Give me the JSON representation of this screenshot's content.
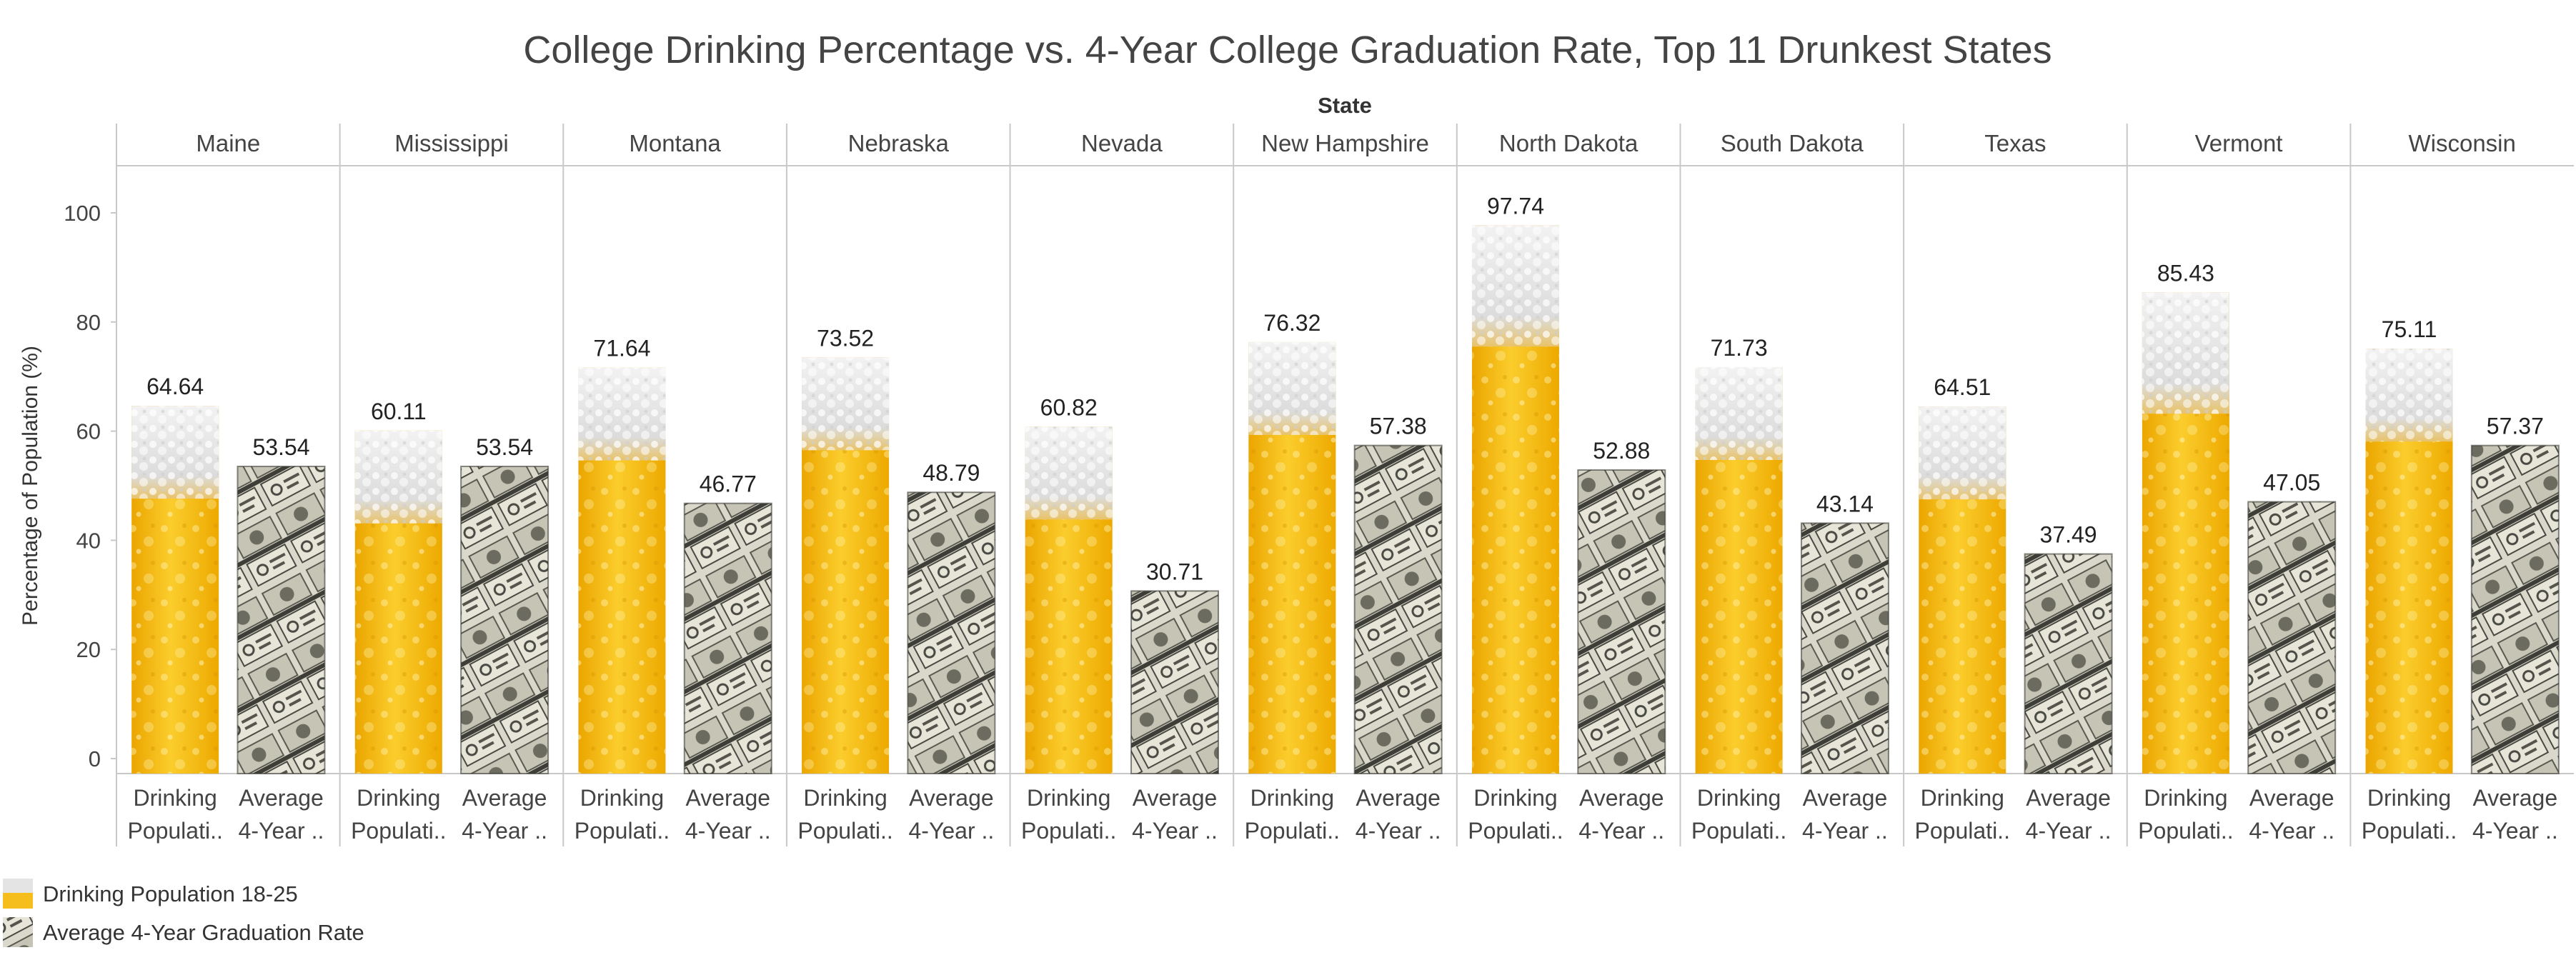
{
  "chart_data": {
    "type": "bar",
    "title": "College Drinking Percentage vs. 4-Year College Graduation Rate, Top 11 Drunkest States",
    "column_header": "State",
    "ylabel": "Percentage of Population (%)",
    "ylim": [
      0,
      110
    ],
    "yticks": [
      0,
      20,
      40,
      60,
      80,
      100
    ],
    "categories": [
      "Maine",
      "Mississippi",
      "Montana",
      "Nebraska",
      "Nevada",
      "New Hampshire",
      "North Dakota",
      "South Dakota",
      "Texas",
      "Vermont",
      "Wisconsin"
    ],
    "bar_axis_labels": [
      [
        "Drinking",
        "Populati.."
      ],
      [
        "Average",
        "4-Year .."
      ]
    ],
    "series": [
      {
        "name": "Drinking Population 18-25",
        "values": [
          64.64,
          60.11,
          71.64,
          73.52,
          60.82,
          76.32,
          97.74,
          71.73,
          64.51,
          85.43,
          75.11
        ],
        "labels": [
          "64.64",
          "60.11",
          "71.64",
          "73.52",
          "60.82",
          "76.32",
          "97.74",
          "71.73",
          "64.51",
          "85.43",
          "75.11"
        ],
        "fill": "beer"
      },
      {
        "name": "Average 4-Year Graduation Rate",
        "values": [
          53.54,
          53.54,
          46.77,
          48.79,
          30.71,
          57.38,
          52.88,
          43.14,
          37.49,
          47.05,
          57.37
        ],
        "labels": [
          "53.54",
          "53.54",
          "46.77",
          "48.79",
          "30.71",
          "57.38",
          "52.88",
          "43.14",
          "37.49",
          "47.05",
          "57.37"
        ],
        "fill": "money"
      }
    ],
    "grid": false,
    "legend_position": "bottom-left",
    "colors": {
      "beer_light": "#f9c62a",
      "beer_dark": "#eba500",
      "foam": "#e6e6e6",
      "money_light": "#d8d7c9",
      "money_dark": "#4e4e46",
      "axis": "#c8c8c8",
      "text": "#333333",
      "value_text": "#222222"
    }
  }
}
